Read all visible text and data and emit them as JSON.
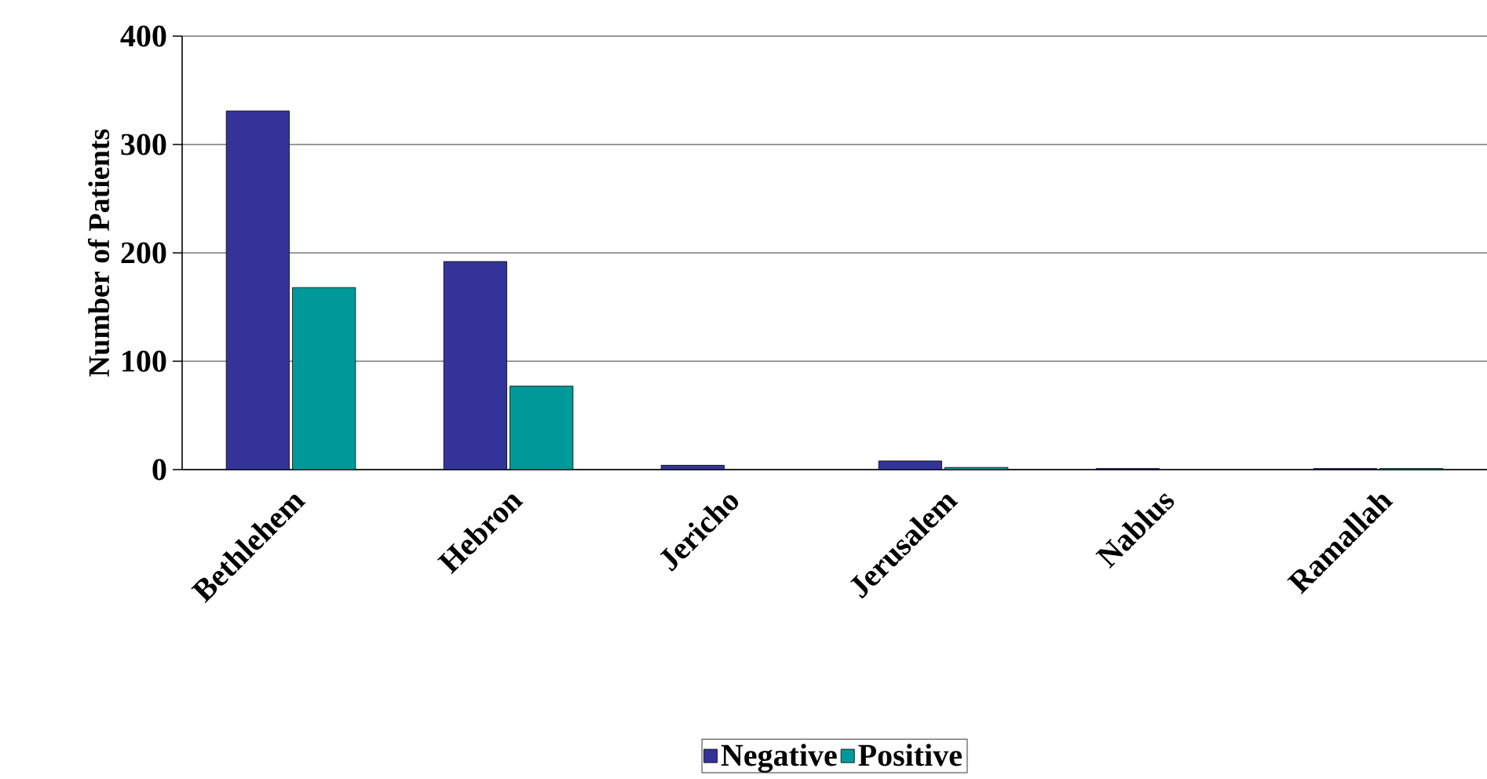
{
  "chart_data": {
    "type": "bar",
    "ylabel": "Number of Patients",
    "categories": [
      "Bethlehem",
      "Hebron",
      "Jericho",
      "Jerusalem",
      "Nablus",
      "Ramallah"
    ],
    "series": [
      {
        "name": "Negative",
        "color": "#333399",
        "values": [
          331,
          192,
          4,
          8,
          1,
          1
        ]
      },
      {
        "name": "Positive",
        "color": "#009999",
        "values": [
          168,
          77,
          null,
          2,
          null,
          1
        ]
      }
    ],
    "ylim": [
      0,
      400
    ],
    "yticks": [
      0,
      100,
      200,
      300,
      400
    ],
    "grid": "y",
    "legend": "bottom"
  }
}
